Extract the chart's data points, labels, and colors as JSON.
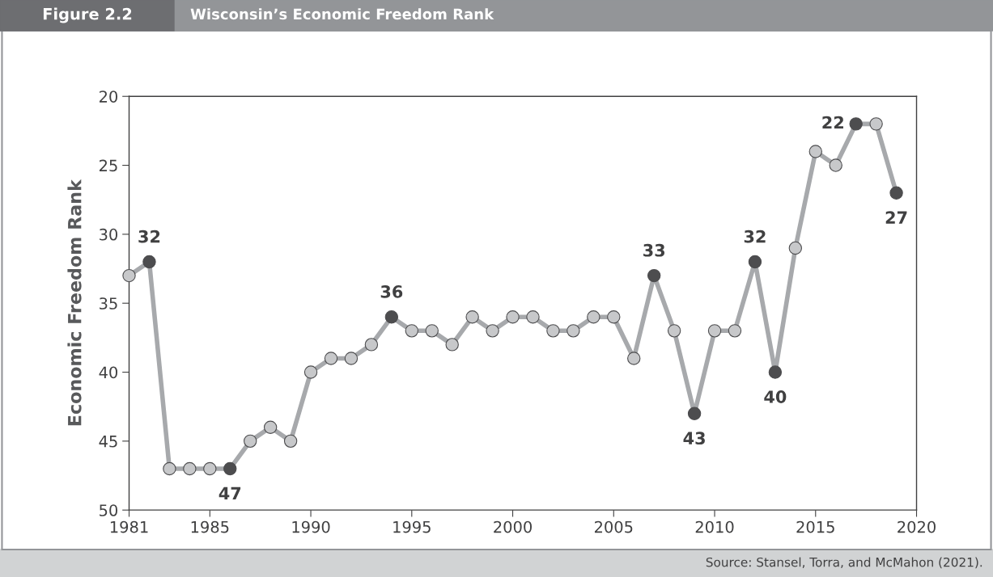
{
  "chart_data": {
    "type": "line",
    "title": "Wisconsin’s Economic Freedom Rank",
    "ylabel": "Economic Freedom Rank",
    "annotations": [
      "Figure 2.2",
      "Source: Stansel, Torra, and McMahon (2021)."
    ],
    "x": [
      1981,
      1982,
      1983,
      1984,
      1985,
      1986,
      1987,
      1988,
      1989,
      1990,
      1991,
      1992,
      1993,
      1994,
      1995,
      1996,
      1997,
      1998,
      1999,
      2000,
      2001,
      2002,
      2003,
      2004,
      2005,
      2006,
      2007,
      2008,
      2009,
      2010,
      2011,
      2012,
      2013,
      2014,
      2015,
      2016,
      2017,
      2018,
      2019
    ],
    "series": [
      {
        "color": "#a7a9ac",
        "values": [
          33,
          32,
          47,
          47,
          47,
          47,
          45,
          44,
          45,
          40,
          39,
          39,
          38,
          36,
          37,
          37,
          38,
          36,
          37,
          36,
          36,
          37,
          37,
          36,
          36,
          39,
          33,
          37,
          43,
          37,
          37,
          32,
          40,
          31,
          24,
          25,
          22,
          22,
          27
        ],
        "colors": [
          "#c7c8ca",
          "#4d4d4f",
          "#c7c8ca",
          "#c7c8ca",
          "#c7c8ca",
          "#4d4d4f",
          "#c7c8ca",
          "#c7c8ca",
          "#c7c8ca",
          "#c7c8ca",
          "#c7c8ca",
          "#c7c8ca",
          "#c7c8ca",
          "#4d4d4f",
          "#c7c8ca",
          "#c7c8ca",
          "#c7c8ca",
          "#c7c8ca",
          "#c7c8ca",
          "#c7c8ca",
          "#c7c8ca",
          "#c7c8ca",
          "#c7c8ca",
          "#c7c8ca",
          "#c7c8ca",
          "#c7c8ca",
          "#4d4d4f",
          "#c7c8ca",
          "#4d4d4f",
          "#c7c8ca",
          "#c7c8ca",
          "#4d4d4f",
          "#4d4d4f",
          "#c7c8ca",
          "#c7c8ca",
          "#c7c8ca",
          "#4d4d4f",
          "#c7c8ca",
          "#4d4d4f"
        ],
        "value_labels": [
          null,
          "32",
          null,
          null,
          null,
          "47",
          null,
          null,
          null,
          null,
          null,
          null,
          null,
          "36",
          null,
          null,
          null,
          null,
          null,
          null,
          null,
          null,
          null,
          null,
          null,
          null,
          "33",
          null,
          "43",
          null,
          null,
          "32",
          "40",
          null,
          null,
          null,
          "22",
          null,
          "27"
        ]
      }
    ],
    "xlim": [
      1981,
      2020
    ],
    "xticks": [
      1981,
      1985,
      1990,
      1995,
      2000,
      2005,
      2010,
      2015,
      2020
    ],
    "ylim": [
      50,
      20
    ],
    "yticks": [
      20,
      25,
      30,
      35,
      40,
      45,
      50
    ],
    "marker": "circle",
    "line_style": "solid",
    "grid": false,
    "legend": false
  }
}
